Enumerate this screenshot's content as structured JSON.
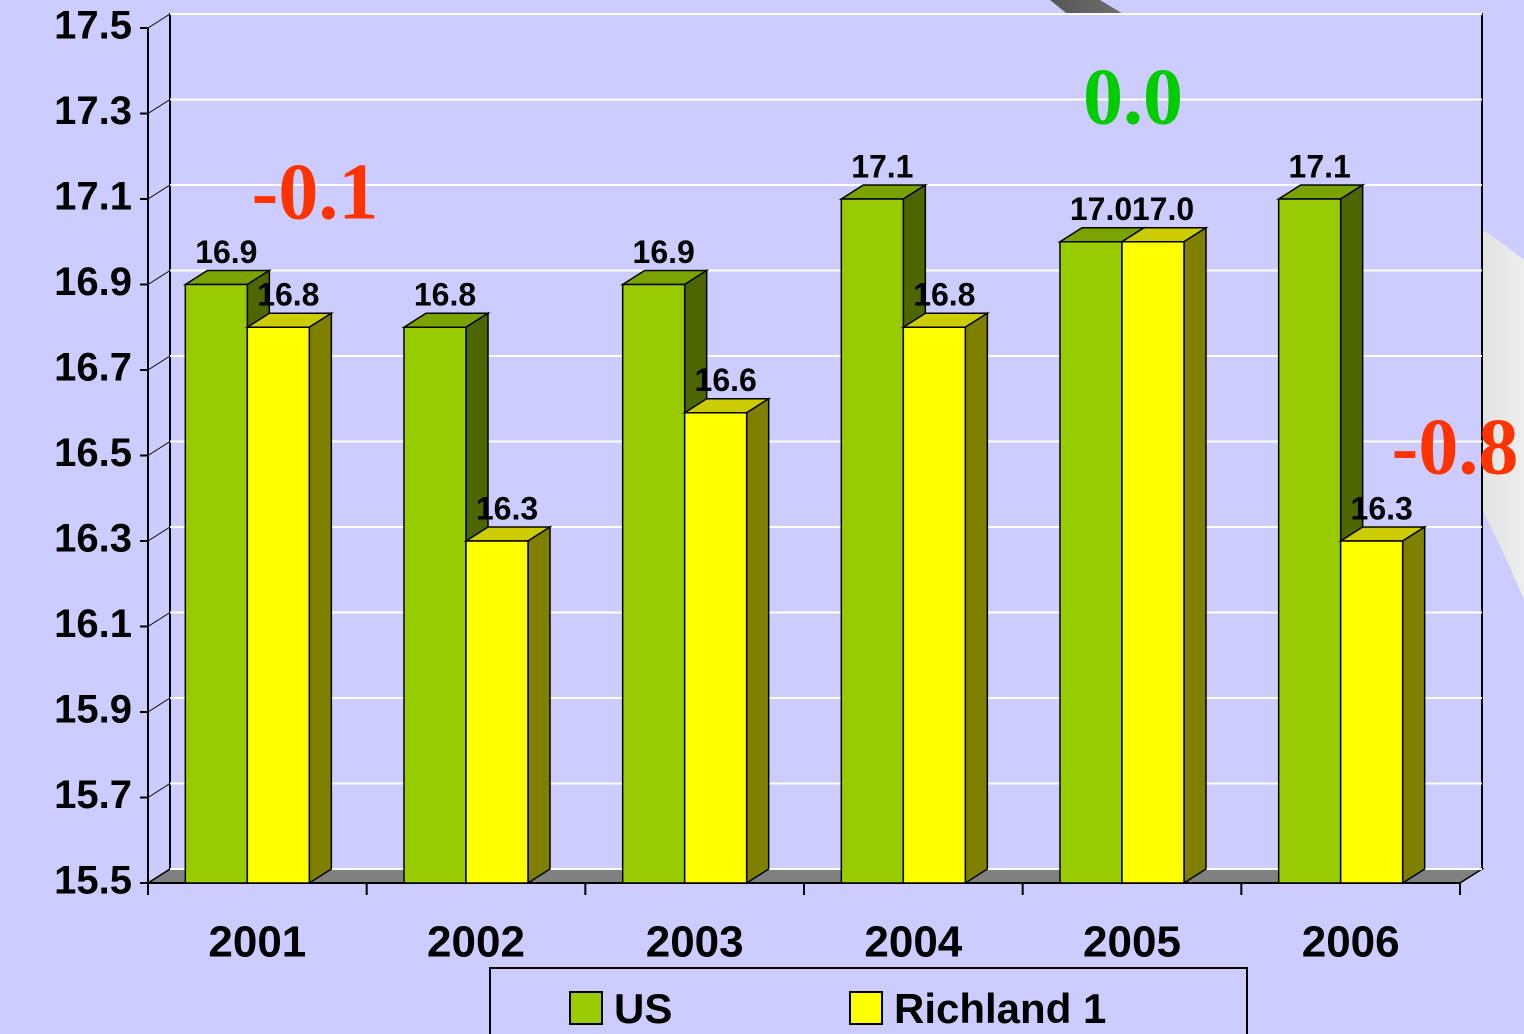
{
  "chart_data": {
    "type": "bar3d",
    "categories": [
      "2001",
      "2002",
      "2003",
      "2004",
      "2005",
      "2006"
    ],
    "series": [
      {
        "name": "US",
        "color": "#99cc00",
        "values": [
          16.9,
          16.8,
          16.9,
          17.1,
          17.0,
          17.1
        ],
        "value_labels": [
          "16.9",
          "16.8",
          "16.9",
          "17.1",
          "17.0",
          "17.1"
        ]
      },
      {
        "name": "Richland 1",
        "color": "#ffff00",
        "values": [
          16.8,
          16.3,
          16.6,
          16.8,
          17.0,
          16.3
        ],
        "value_labels": [
          "16.8",
          "16.3",
          "16.6",
          "16.8",
          "17.0",
          "16.3"
        ]
      }
    ],
    "ylim": [
      15.5,
      17.5
    ],
    "yticks": [
      15.5,
      15.7,
      15.9,
      16.1,
      16.3,
      16.5,
      16.7,
      16.9,
      17.1,
      17.3,
      17.5
    ],
    "grid": true,
    "annotations": [
      {
        "text": "-0.1",
        "color": "#ff3300"
      },
      {
        "text": "0.0",
        "color": "#00cc00"
      },
      {
        "text": "-0.8",
        "color": "#ff3300"
      }
    ]
  }
}
